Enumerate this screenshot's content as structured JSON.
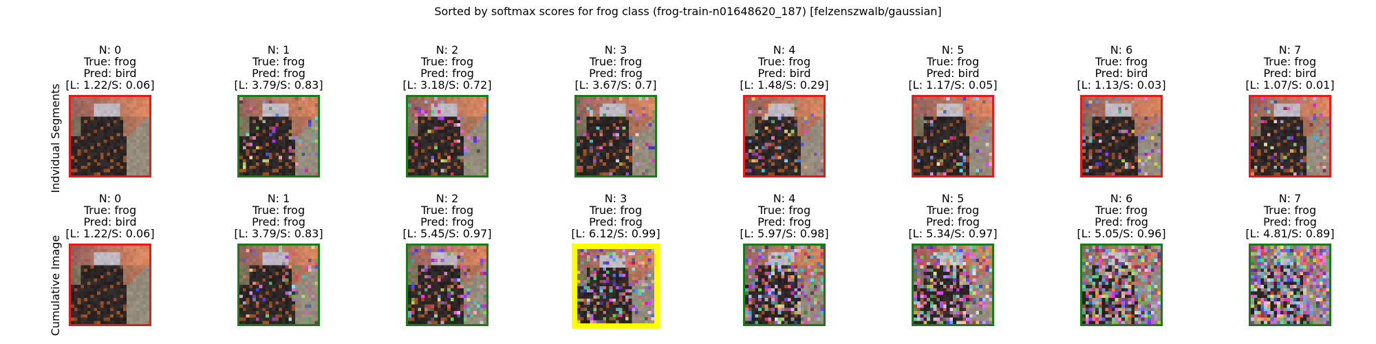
{
  "title": "Sorted by softmax scores for frog class (frog-train-n01648620_187) [felzenszwalb/gaussian]",
  "rows": [
    {
      "label": "Indvidual Segments",
      "cells": [
        {
          "n": "N: 0",
          "true": "True: frog",
          "pred": "Pred: bird",
          "score": "[L: 1.22/S: 0.06]",
          "frame_color": "#e41a1c",
          "noise": 0.0
        },
        {
          "n": "N: 1",
          "true": "True: frog",
          "pred": "Pred: frog",
          "score": "[L: 3.79/S: 0.83]",
          "frame_color": "#1a7a1a",
          "noise": 0.1
        },
        {
          "n": "N: 2",
          "true": "True: frog",
          "pred": "Pred: frog",
          "score": "[L: 3.18/S: 0.72]",
          "frame_color": "#1a7a1a",
          "noise": 0.1
        },
        {
          "n": "N: 3",
          "true": "True: frog",
          "pred": "Pred: frog",
          "score": "[L: 3.67/S: 0.7]",
          "frame_color": "#1a7a1a",
          "noise": 0.1
        },
        {
          "n": "N: 4",
          "true": "True: frog",
          "pred": "Pred: bird",
          "score": "[L: 1.48/S: 0.29]",
          "frame_color": "#e41a1c",
          "noise": 0.1
        },
        {
          "n": "N: 5",
          "true": "True: frog",
          "pred": "Pred: bird",
          "score": "[L: 1.17/S: 0.05]",
          "frame_color": "#e41a1c",
          "noise": 0.1
        },
        {
          "n": "N: 6",
          "true": "True: frog",
          "pred": "Pred: bird",
          "score": "[L: 1.13/S: 0.03]",
          "frame_color": "#e41a1c",
          "noise": 0.1
        },
        {
          "n": "N: 7",
          "true": "True: frog",
          "pred": "Pred: bird",
          "score": "[L: 1.07/S: 0.01]",
          "frame_color": "#e41a1c",
          "noise": 0.1
        }
      ]
    },
    {
      "label": "Cumulative Image",
      "cells": [
        {
          "n": "N: 0",
          "true": "True: frog",
          "pred": "Pred: bird",
          "score": "[L: 1.22/S: 0.06]",
          "frame_color": "#e41a1c",
          "noise": 0.0
        },
        {
          "n": "N: 1",
          "true": "True: frog",
          "pred": "Pred: frog",
          "score": "[L: 3.79/S: 0.83]",
          "frame_color": "#1a7a1a",
          "noise": 0.1
        },
        {
          "n": "N: 2",
          "true": "True: frog",
          "pred": "Pred: frog",
          "score": "[L: 5.45/S: 0.97]",
          "frame_color": "#1a7a1a",
          "noise": 0.2
        },
        {
          "n": "N: 3",
          "true": "True: frog",
          "pred": "Pred: frog",
          "score": "[L: 6.12/S: 0.99]",
          "frame_color": "#ffff00",
          "noise": 0.3,
          "highlight": true
        },
        {
          "n": "N: 4",
          "true": "True: frog",
          "pred": "Pred: frog",
          "score": "[L: 5.97/S: 0.98]",
          "frame_color": "#1a7a1a",
          "noise": 0.4
        },
        {
          "n": "N: 5",
          "true": "True: frog",
          "pred": "Pred: frog",
          "score": "[L: 5.34/S: 0.97]",
          "frame_color": "#1a7a1a",
          "noise": 0.5
        },
        {
          "n": "N: 6",
          "true": "True: frog",
          "pred": "Pred: frog",
          "score": "[L: 5.05/S: 0.96]",
          "frame_color": "#1a7a1a",
          "noise": 0.6
        },
        {
          "n": "N: 7",
          "true": "True: frog",
          "pred": "Pred: frog",
          "score": "[L: 4.81/S: 0.89]",
          "frame_color": "#1a7a1a",
          "noise": 0.7
        }
      ]
    }
  ]
}
